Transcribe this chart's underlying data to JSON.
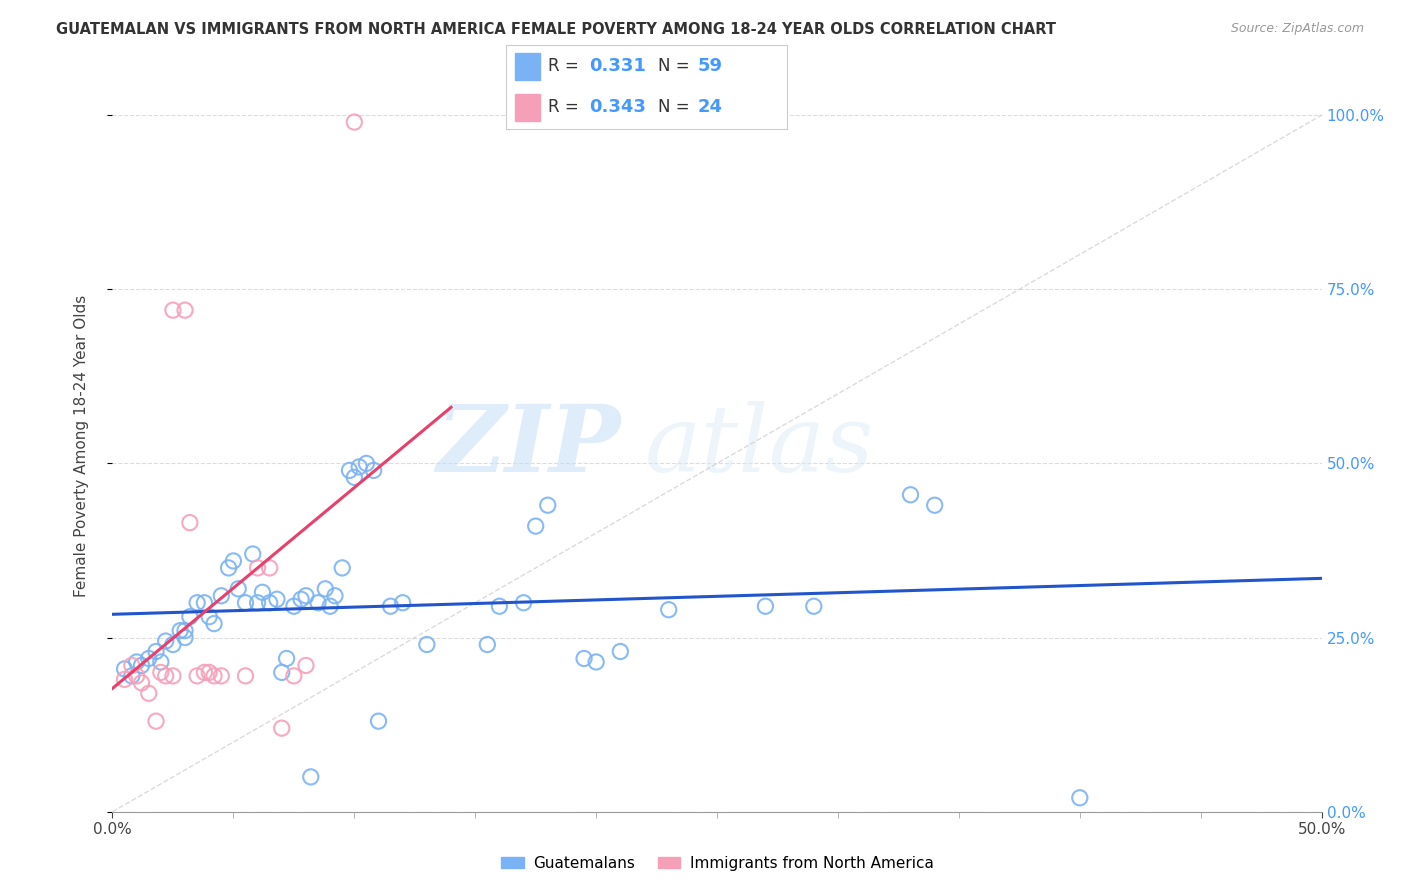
{
  "title": "GUATEMALAN VS IMMIGRANTS FROM NORTH AMERICA FEMALE POVERTY AMONG 18-24 YEAR OLDS CORRELATION CHART",
  "source": "Source: ZipAtlas.com",
  "ylabel": "Female Poverty Among 18-24 Year Olds",
  "xlim": [
    0.0,
    0.5
  ],
  "ylim": [
    0.0,
    1.05
  ],
  "blue_color": "#7ab3f5",
  "pink_color": "#f5a0b8",
  "blue_line_color": "#2255cc",
  "pink_line_color": "#e8406a",
  "blue_scatter": [
    [
      0.005,
      0.205
    ],
    [
      0.008,
      0.195
    ],
    [
      0.01,
      0.215
    ],
    [
      0.012,
      0.21
    ],
    [
      0.015,
      0.22
    ],
    [
      0.018,
      0.23
    ],
    [
      0.02,
      0.215
    ],
    [
      0.022,
      0.245
    ],
    [
      0.025,
      0.24
    ],
    [
      0.028,
      0.26
    ],
    [
      0.03,
      0.25
    ],
    [
      0.03,
      0.26
    ],
    [
      0.032,
      0.28
    ],
    [
      0.035,
      0.3
    ],
    [
      0.038,
      0.3
    ],
    [
      0.04,
      0.28
    ],
    [
      0.042,
      0.27
    ],
    [
      0.045,
      0.31
    ],
    [
      0.048,
      0.35
    ],
    [
      0.05,
      0.36
    ],
    [
      0.052,
      0.32
    ],
    [
      0.055,
      0.3
    ],
    [
      0.058,
      0.37
    ],
    [
      0.06,
      0.3
    ],
    [
      0.062,
      0.315
    ],
    [
      0.065,
      0.3
    ],
    [
      0.068,
      0.305
    ],
    [
      0.07,
      0.2
    ],
    [
      0.072,
      0.22
    ],
    [
      0.075,
      0.295
    ],
    [
      0.078,
      0.305
    ],
    [
      0.08,
      0.31
    ],
    [
      0.082,
      0.05
    ],
    [
      0.085,
      0.3
    ],
    [
      0.088,
      0.32
    ],
    [
      0.09,
      0.295
    ],
    [
      0.092,
      0.31
    ],
    [
      0.095,
      0.35
    ],
    [
      0.098,
      0.49
    ],
    [
      0.1,
      0.48
    ],
    [
      0.102,
      0.495
    ],
    [
      0.105,
      0.5
    ],
    [
      0.108,
      0.49
    ],
    [
      0.11,
      0.13
    ],
    [
      0.115,
      0.295
    ],
    [
      0.12,
      0.3
    ],
    [
      0.13,
      0.24
    ],
    [
      0.155,
      0.24
    ],
    [
      0.16,
      0.295
    ],
    [
      0.17,
      0.3
    ],
    [
      0.175,
      0.41
    ],
    [
      0.18,
      0.44
    ],
    [
      0.195,
      0.22
    ],
    [
      0.2,
      0.215
    ],
    [
      0.21,
      0.23
    ],
    [
      0.23,
      0.29
    ],
    [
      0.27,
      0.295
    ],
    [
      0.29,
      0.295
    ],
    [
      0.33,
      0.455
    ],
    [
      0.34,
      0.44
    ],
    [
      0.4,
      0.02
    ]
  ],
  "pink_scatter": [
    [
      0.005,
      0.19
    ],
    [
      0.008,
      0.21
    ],
    [
      0.01,
      0.195
    ],
    [
      0.012,
      0.185
    ],
    [
      0.015,
      0.17
    ],
    [
      0.018,
      0.13
    ],
    [
      0.02,
      0.2
    ],
    [
      0.022,
      0.195
    ],
    [
      0.025,
      0.195
    ],
    [
      0.025,
      0.72
    ],
    [
      0.03,
      0.72
    ],
    [
      0.032,
      0.415
    ],
    [
      0.035,
      0.195
    ],
    [
      0.038,
      0.2
    ],
    [
      0.04,
      0.2
    ],
    [
      0.042,
      0.195
    ],
    [
      0.045,
      0.195
    ],
    [
      0.055,
      0.195
    ],
    [
      0.06,
      0.35
    ],
    [
      0.065,
      0.35
    ],
    [
      0.07,
      0.12
    ],
    [
      0.075,
      0.195
    ],
    [
      0.08,
      0.21
    ],
    [
      0.1,
      0.99
    ]
  ],
  "yticks": [
    0.0,
    0.25,
    0.5,
    0.75,
    1.0
  ],
  "xtick_ends": [
    0.0,
    0.5
  ],
  "xtick_minor": [
    0.05,
    0.1,
    0.15,
    0.2,
    0.25,
    0.3,
    0.35,
    0.4,
    0.45
  ],
  "watermark_zip": "ZIP",
  "watermark_atlas": "atlas",
  "background_color": "#ffffff"
}
